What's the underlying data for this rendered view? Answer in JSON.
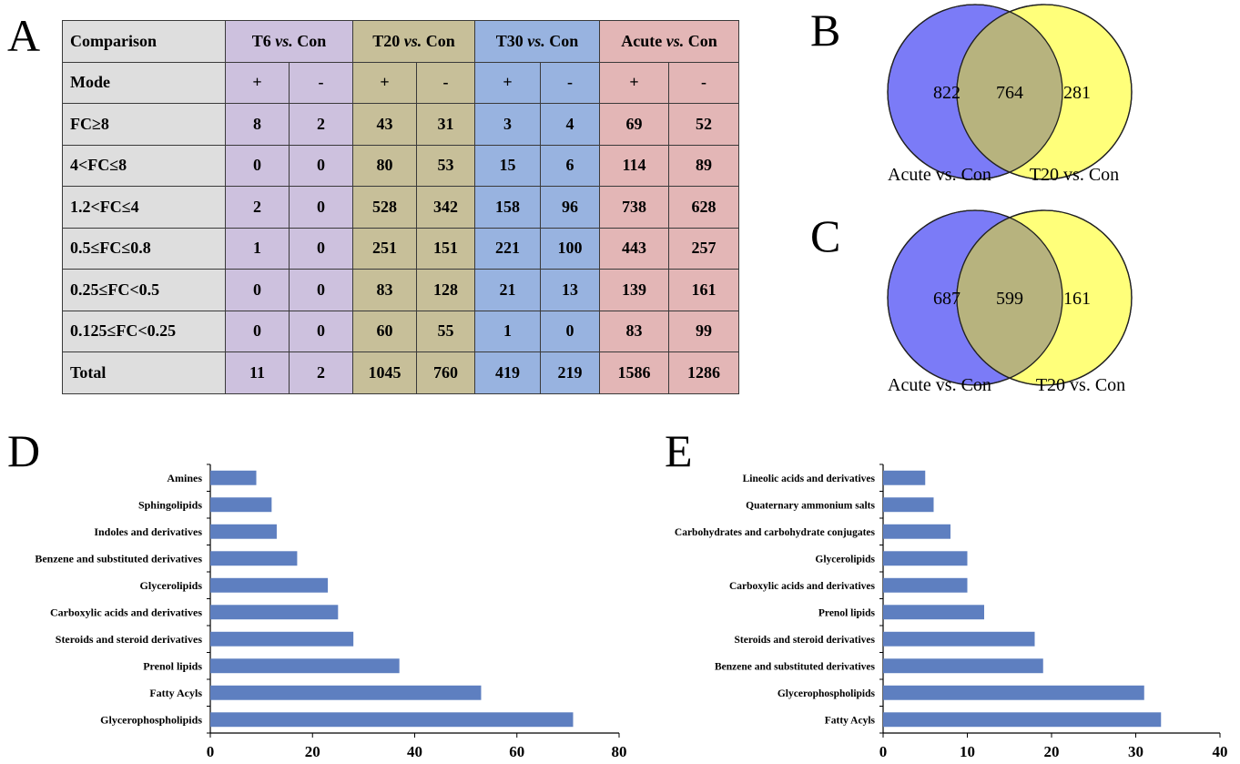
{
  "panels": {
    "a": "A",
    "b": "B",
    "c": "C",
    "d": "D",
    "e": "E"
  },
  "table": {
    "header": {
      "comparison": "Comparison",
      "groups": [
        {
          "prefix": "T6 ",
          "vs": "vs.",
          "suffix": " Con"
        },
        {
          "prefix": "T20 ",
          "vs": "vs.",
          "suffix": " Con"
        },
        {
          "prefix": "T30 ",
          "vs": "vs.",
          "suffix": " Con"
        },
        {
          "prefix": "Acute ",
          "vs": "vs.",
          "suffix": " Con"
        }
      ]
    },
    "rows": [
      {
        "label": "Mode",
        "values": [
          "+",
          "-",
          "+",
          "-",
          "+",
          "-",
          "+",
          "-"
        ]
      },
      {
        "label": "FC≥8",
        "values": [
          "8",
          "2",
          "43",
          "31",
          "3",
          "4",
          "69",
          "52"
        ]
      },
      {
        "label": "4<FC≤8",
        "values": [
          "0",
          "0",
          "80",
          "53",
          "15",
          "6",
          "114",
          "89"
        ]
      },
      {
        "label": "1.2<FC≤4",
        "values": [
          "2",
          "0",
          "528",
          "342",
          "158",
          "96",
          "738",
          "628"
        ]
      },
      {
        "label": "0.5≤FC≤0.8",
        "values": [
          "1",
          "0",
          "251",
          "151",
          "221",
          "100",
          "443",
          "257"
        ]
      },
      {
        "label": "0.25≤FC<0.5",
        "values": [
          "0",
          "0",
          "83",
          "128",
          "21",
          "13",
          "139",
          "161"
        ]
      },
      {
        "label": "0.125≤FC<0.25",
        "values": [
          "0",
          "0",
          "60",
          "55",
          "1",
          "0",
          "83",
          "99"
        ]
      },
      {
        "label": "Total",
        "values": [
          "11",
          "2",
          "1045",
          "760",
          "419",
          "219",
          "1586",
          "1286"
        ]
      }
    ]
  },
  "venn_b": {
    "left_only": "822",
    "overlap": "764",
    "right_only": "281",
    "left_label": "Acute vs. Con",
    "right_label": "T20 vs. Con"
  },
  "venn_c": {
    "left_only": "687",
    "overlap": "599",
    "right_only": "161",
    "left_label": "Acute vs. Con",
    "right_label": "T20 vs. Con"
  },
  "colors": {
    "venn_left": "#7b7bf7",
    "venn_right": "#ffff7a",
    "venn_overlap": "#b7b37e",
    "bar": "#5e7fc0"
  },
  "chart_data": [
    {
      "type": "bar",
      "orientation": "horizontal",
      "categories": [
        "Amines",
        "Sphingolipids",
        "Indoles and derivatives",
        "Benzene and substituted derivatives",
        "Glycerolipids",
        "Carboxylic acids and derivatives",
        "Steroids and steroid derivatives",
        "Prenol lipids",
        "Fatty Acyls",
        "Glycerophospholipids"
      ],
      "values": [
        9,
        12,
        13,
        17,
        23,
        25,
        28,
        37,
        53,
        71
      ],
      "xlim": [
        0,
        80
      ],
      "xticks": [
        0,
        20,
        40,
        60,
        80
      ]
    },
    {
      "type": "bar",
      "orientation": "horizontal",
      "categories": [
        "Lineolic acids and derivatives",
        "Quaternary ammonium salts",
        "Carbohydrates and carbohydrate conjugates",
        "Glycerolipids",
        "Carboxylic acids and derivatives",
        "Prenol lipids",
        "Steroids and steroid derivatives",
        "Benzene and substituted derivatives",
        "Glycerophospholipids",
        "Fatty Acyls"
      ],
      "values": [
        5,
        6,
        8,
        10,
        10,
        12,
        18,
        19,
        31,
        33
      ],
      "xlim": [
        0,
        40
      ],
      "xticks": [
        0,
        10,
        20,
        30,
        40
      ]
    }
  ]
}
